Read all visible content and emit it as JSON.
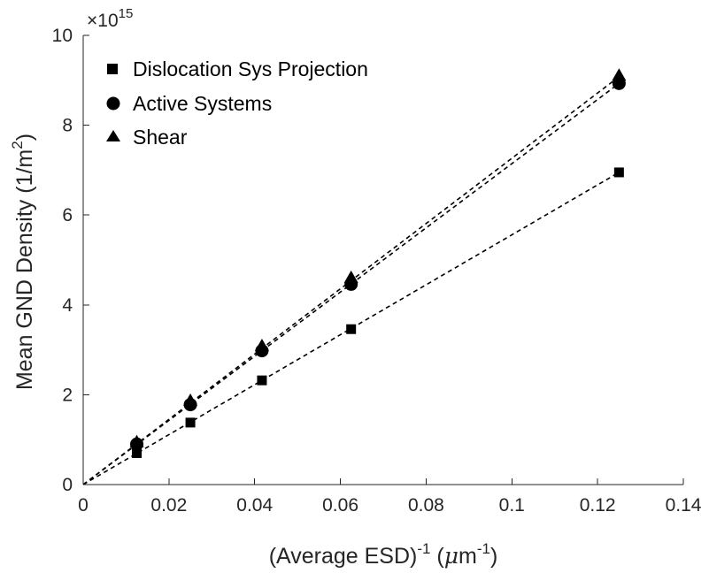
{
  "chart_data": {
    "type": "scatter",
    "title": "",
    "xlabel": {
      "main": "(Average ESD)",
      "sup1": "-1",
      "unit_open": " (",
      "unit_mu": "μ",
      "unit_m": "m",
      "sup2": "-1",
      "unit_close": ")"
    },
    "ylabel": {
      "main": "Mean GND Density (1/m",
      "sup": "2",
      "close": ")"
    },
    "xlim": [
      0,
      0.14
    ],
    "ylim": [
      0,
      10
    ],
    "xticks": [
      0,
      0.02,
      0.04,
      0.06,
      0.08,
      0.1,
      0.12,
      0.14
    ],
    "xtick_labels": [
      "0",
      "0.02",
      "0.04",
      "0.06",
      "0.08",
      "0.1",
      "0.12",
      "0.14"
    ],
    "yticks": [
      0,
      2,
      4,
      6,
      8,
      10
    ],
    "ytick_labels": [
      "0",
      "2",
      "4",
      "6",
      "8",
      "10"
    ],
    "y_multiplier": {
      "base": "×10",
      "exponent": "15"
    },
    "legend_position": "top-left",
    "grid": false,
    "series": [
      {
        "name": "Dislocation Sys Projection",
        "marker": "square",
        "x": [
          0.0125,
          0.025,
          0.0417,
          0.0625,
          0.125
        ],
        "y": [
          0.7,
          1.38,
          2.32,
          3.46,
          6.95
        ],
        "fit": {
          "x": [
            0,
            0.125
          ],
          "y": [
            0,
            6.95
          ]
        }
      },
      {
        "name": "Active Systems",
        "marker": "circle",
        "x": [
          0.0125,
          0.025,
          0.0417,
          0.0625,
          0.125
        ],
        "y": [
          0.9,
          1.78,
          2.98,
          4.46,
          8.93
        ],
        "fit": {
          "x": [
            0,
            0.125
          ],
          "y": [
            0,
            8.93
          ]
        }
      },
      {
        "name": "Shear",
        "marker": "triangle",
        "x": [
          0.0125,
          0.025,
          0.0417,
          0.0625,
          0.125
        ],
        "y": [
          0.94,
          1.86,
          3.08,
          4.6,
          9.1
        ],
        "fit": {
          "x": [
            0,
            0.125
          ],
          "y": [
            0,
            9.08
          ]
        }
      }
    ]
  }
}
